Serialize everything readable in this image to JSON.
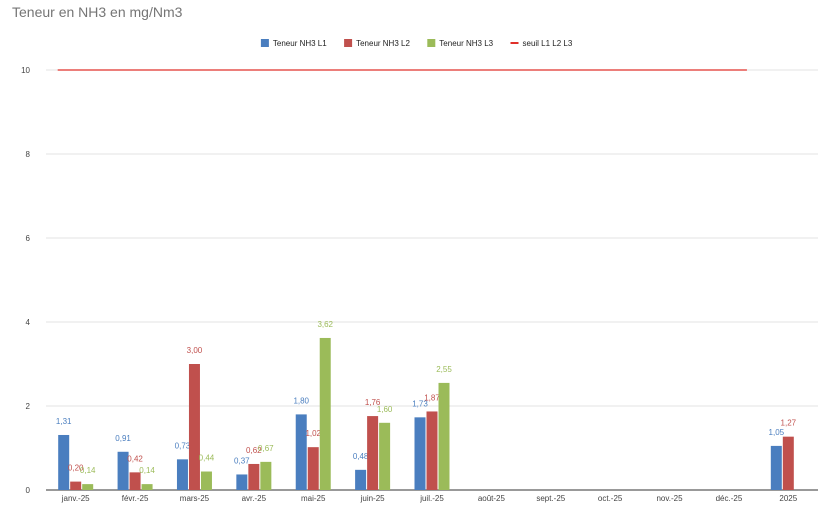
{
  "chart_data": {
    "type": "bar",
    "title": "Teneur en NH3 en mg/Nm3",
    "categories": [
      "janv.-25",
      "févr.-25",
      "mars-25",
      "avr.-25",
      "mai-25",
      "juin-25",
      "juil.-25",
      "août-25",
      "sept.-25",
      "oct.-25",
      "nov.-25",
      "déc.-25",
      "2025"
    ],
    "series": [
      {
        "name": "Teneur NH3 L1",
        "color": "#4a7ebf",
        "values": [
          1.31,
          0.91,
          0.73,
          0.37,
          1.8,
          0.48,
          1.73,
          null,
          null,
          null,
          null,
          null,
          1.05
        ],
        "labels": [
          "1,31",
          "0,91",
          "0,73",
          "0,37",
          "1,80",
          "0,48",
          "1,73",
          "",
          "",
          "",
          "",
          "",
          "1,05"
        ]
      },
      {
        "name": "Teneur NH3 L2",
        "color": "#c0504d",
        "values": [
          0.2,
          0.42,
          3.0,
          0.62,
          1.02,
          1.76,
          1.87,
          null,
          null,
          null,
          null,
          null,
          1.27
        ],
        "labels": [
          "0,20",
          "0,42",
          "3,00",
          "0,62",
          "1,02",
          "1,76",
          "1,87",
          "",
          "",
          "",
          "",
          "",
          "1,27"
        ]
      },
      {
        "name": "Teneur NH3 L3",
        "color": "#9bbb59",
        "values": [
          0.14,
          0.14,
          0.44,
          0.67,
          3.62,
          1.6,
          2.55,
          null,
          null,
          null,
          null,
          null,
          null
        ],
        "labels": [
          "0,14",
          "0,14",
          "0,44",
          "0,67",
          "3,62",
          "1,60",
          "2,55",
          "",
          "",
          "",
          "",
          "",
          ""
        ]
      }
    ],
    "threshold": {
      "name": "seuil L1 L2 L3",
      "value": 10,
      "color": "#e0302a"
    },
    "yticks": [
      "0",
      "2",
      "4",
      "6",
      "8",
      "10"
    ],
    "ylim": [
      0,
      10
    ],
    "grid": true,
    "legend_position": "top-center"
  }
}
